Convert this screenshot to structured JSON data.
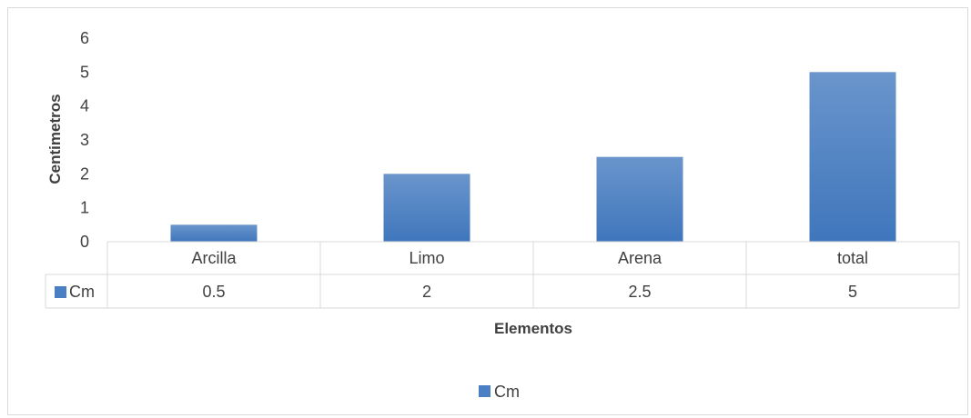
{
  "chart_data": {
    "type": "bar",
    "categories": [
      "Arcilla",
      "Limo",
      "Arena",
      "total"
    ],
    "series": [
      {
        "name": "Cm",
        "values": [
          0.5,
          2,
          2.5,
          5
        ],
        "color": "#4a7fc4"
      }
    ],
    "ylabel": "Centimetros",
    "xlabel": "Elementos",
    "ylim": [
      0,
      6
    ],
    "yticks": [
      0,
      1,
      2,
      3,
      4,
      5,
      6
    ],
    "data_table": {
      "series_label": "Cm",
      "values_display": [
        "0.5",
        "2",
        "2.5",
        "5"
      ]
    },
    "legend": {
      "position": "bottom",
      "label": "Cm"
    },
    "grid": false
  }
}
